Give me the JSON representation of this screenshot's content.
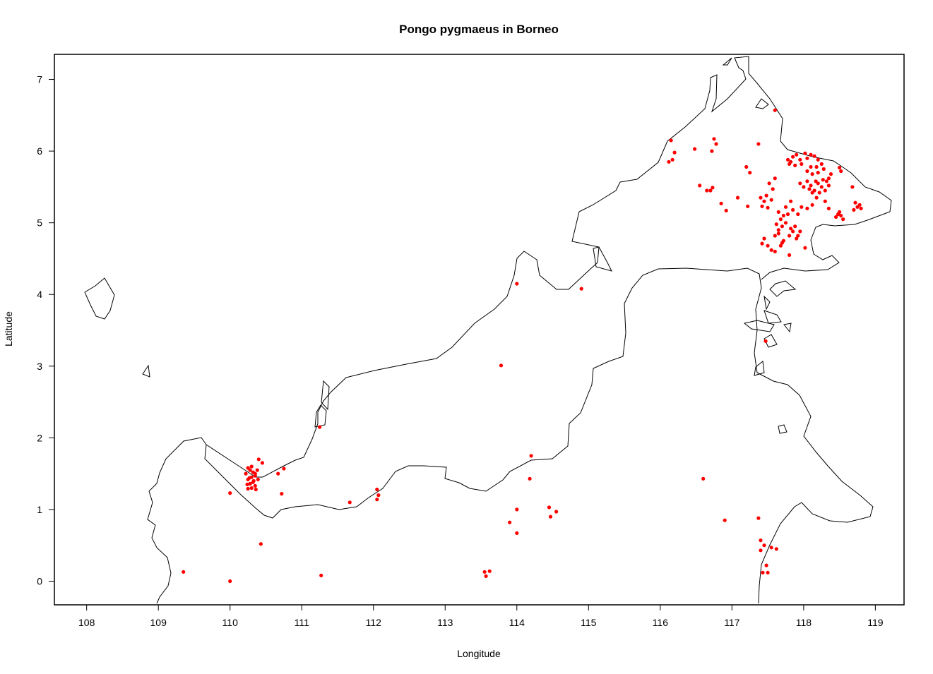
{
  "chart_data": {
    "type": "scatter",
    "title": "Pongo pygmaeus in Borneo",
    "xlabel": "Longitude",
    "ylabel": "Latitude",
    "xlim": [
      107.55,
      119.4
    ],
    "ylim": [
      -0.33,
      7.35
    ],
    "x_ticks": [
      108,
      109,
      110,
      111,
      112,
      113,
      114,
      115,
      116,
      117,
      118,
      119
    ],
    "y_ticks": [
      0,
      1,
      2,
      3,
      4,
      5,
      6,
      7
    ],
    "grid": false,
    "legend": "none",
    "point_color": "#ff0000",
    "outline_color": "#000000",
    "series": [
      {
        "points": [
          [
            110.25,
            1.58
          ],
          [
            110.28,
            1.55
          ],
          [
            110.32,
            1.52
          ],
          [
            110.35,
            1.5
          ],
          [
            110.3,
            1.45
          ],
          [
            110.25,
            1.42
          ],
          [
            110.33,
            1.4
          ],
          [
            110.28,
            1.36
          ],
          [
            110.35,
            1.33
          ],
          [
            110.22,
            1.5
          ],
          [
            110.38,
            1.55
          ],
          [
            110.3,
            1.6
          ],
          [
            110.35,
            1.47
          ],
          [
            110.27,
            1.44
          ],
          [
            110.32,
            1.38
          ],
          [
            110.24,
            1.35
          ],
          [
            110.3,
            1.3
          ],
          [
            110.36,
            1.28
          ],
          [
            110.25,
            1.29
          ],
          [
            110.39,
            1.42
          ],
          [
            110.45,
            1.65
          ],
          [
            110.4,
            1.7
          ],
          [
            110.75,
            1.57
          ],
          [
            110.67,
            1.5
          ],
          [
            110.72,
            1.22
          ],
          [
            110.0,
            1.23
          ],
          [
            110.43,
            0.52
          ],
          [
            110.0,
            0.0
          ],
          [
            109.35,
            0.13
          ],
          [
            111.27,
            0.08
          ],
          [
            111.25,
            2.15
          ],
          [
            111.67,
            1.1
          ],
          [
            112.05,
            1.28
          ],
          [
            112.07,
            1.2
          ],
          [
            112.05,
            1.14
          ],
          [
            113.78,
            3.01
          ],
          [
            114.0,
            4.15
          ],
          [
            114.9,
            4.08
          ],
          [
            114.2,
            1.75
          ],
          [
            114.18,
            1.43
          ],
          [
            114.0,
            1.0
          ],
          [
            113.9,
            0.82
          ],
          [
            114.0,
            0.67
          ],
          [
            114.45,
            1.03
          ],
          [
            114.55,
            0.97
          ],
          [
            114.47,
            0.9
          ],
          [
            113.55,
            0.13
          ],
          [
            113.62,
            0.14
          ],
          [
            113.57,
            0.07
          ],
          [
            116.6,
            1.43
          ],
          [
            116.9,
            0.85
          ],
          [
            117.37,
            0.88
          ],
          [
            117.4,
            0.57
          ],
          [
            117.45,
            0.5
          ],
          [
            117.4,
            0.43
          ],
          [
            117.55,
            0.47
          ],
          [
            117.62,
            0.45
          ],
          [
            117.48,
            0.22
          ],
          [
            117.5,
            0.12
          ],
          [
            117.43,
            0.12
          ],
          [
            117.47,
            3.35
          ],
          [
            116.15,
            6.15
          ],
          [
            116.2,
            5.98
          ],
          [
            116.12,
            5.85
          ],
          [
            116.17,
            5.88
          ],
          [
            116.48,
            6.03
          ],
          [
            116.72,
            6.0
          ],
          [
            116.75,
            6.17
          ],
          [
            116.78,
            6.1
          ],
          [
            116.55,
            5.52
          ],
          [
            116.65,
            5.45
          ],
          [
            116.7,
            5.45
          ],
          [
            116.73,
            5.49
          ],
          [
            116.85,
            5.27
          ],
          [
            116.92,
            5.17
          ],
          [
            117.08,
            5.35
          ],
          [
            117.22,
            5.23
          ],
          [
            117.2,
            5.78
          ],
          [
            117.25,
            5.7
          ],
          [
            117.37,
            6.1
          ],
          [
            117.6,
            6.57
          ],
          [
            117.4,
            5.35
          ],
          [
            117.45,
            5.3
          ],
          [
            117.48,
            5.38
          ],
          [
            117.55,
            5.32
          ],
          [
            117.52,
            5.55
          ],
          [
            117.57,
            5.47
          ],
          [
            117.6,
            5.62
          ],
          [
            117.5,
            5.21
          ],
          [
            117.42,
            5.23
          ],
          [
            117.45,
            4.78
          ],
          [
            117.42,
            4.71
          ],
          [
            117.5,
            4.68
          ],
          [
            117.55,
            4.62
          ],
          [
            117.6,
            4.6
          ],
          [
            117.65,
            4.85
          ],
          [
            117.7,
            4.72
          ],
          [
            117.78,
            5.88
          ],
          [
            117.85,
            5.92
          ],
          [
            117.82,
            5.85
          ],
          [
            117.9,
            5.95
          ],
          [
            117.95,
            5.88
          ],
          [
            117.8,
            5.82
          ],
          [
            117.88,
            5.8
          ],
          [
            117.97,
            5.82
          ],
          [
            118.05,
            5.9
          ],
          [
            118.02,
            5.97
          ],
          [
            118.1,
            5.95
          ],
          [
            118.15,
            5.93
          ],
          [
            118.2,
            5.88
          ],
          [
            118.25,
            5.82
          ],
          [
            118.18,
            5.78
          ],
          [
            118.1,
            5.78
          ],
          [
            118.05,
            5.72
          ],
          [
            118.12,
            5.68
          ],
          [
            118.2,
            5.7
          ],
          [
            118.28,
            5.75
          ],
          [
            118.35,
            5.62
          ],
          [
            118.38,
            5.68
          ],
          [
            118.5,
            5.77
          ],
          [
            118.52,
            5.72
          ],
          [
            118.68,
            5.5
          ],
          [
            117.95,
            5.55
          ],
          [
            118.0,
            5.5
          ],
          [
            118.05,
            5.58
          ],
          [
            118.1,
            5.52
          ],
          [
            118.15,
            5.45
          ],
          [
            118.2,
            5.55
          ],
          [
            118.25,
            5.5
          ],
          [
            118.3,
            5.45
          ],
          [
            118.35,
            5.52
          ],
          [
            118.32,
            5.58
          ],
          [
            118.27,
            5.6
          ],
          [
            118.22,
            5.42
          ],
          [
            118.17,
            5.58
          ],
          [
            118.12,
            5.42
          ],
          [
            118.08,
            5.47
          ],
          [
            118.3,
            5.3
          ],
          [
            118.35,
            5.2
          ],
          [
            118.18,
            5.35
          ],
          [
            118.12,
            5.25
          ],
          [
            118.05,
            5.2
          ],
          [
            118.5,
            5.15
          ],
          [
            118.52,
            5.1
          ],
          [
            118.55,
            5.05
          ],
          [
            118.48,
            5.12
          ],
          [
            118.45,
            5.08
          ],
          [
            118.72,
            5.28
          ],
          [
            118.75,
            5.22
          ],
          [
            118.78,
            5.25
          ],
          [
            118.7,
            5.18
          ],
          [
            118.8,
            5.2
          ],
          [
            117.65,
            5.15
          ],
          [
            117.68,
            5.05
          ],
          [
            117.72,
            5.1
          ],
          [
            117.75,
            5.0
          ],
          [
            117.7,
            4.95
          ],
          [
            117.65,
            4.9
          ],
          [
            117.62,
            4.98
          ],
          [
            117.78,
            5.12
          ],
          [
            117.82,
            4.92
          ],
          [
            117.85,
            4.88
          ],
          [
            117.88,
            4.95
          ],
          [
            117.92,
            4.82
          ],
          [
            117.95,
            4.88
          ],
          [
            117.9,
            4.78
          ],
          [
            117.8,
            4.82
          ],
          [
            117.85,
            5.18
          ],
          [
            117.92,
            5.12
          ],
          [
            117.97,
            5.22
          ],
          [
            117.75,
            5.22
          ],
          [
            117.82,
            5.3
          ],
          [
            118.02,
            4.65
          ],
          [
            117.8,
            4.55
          ],
          [
            117.72,
            4.75
          ],
          [
            117.6,
            4.82
          ],
          [
            117.68,
            4.68
          ]
        ]
      }
    ]
  }
}
